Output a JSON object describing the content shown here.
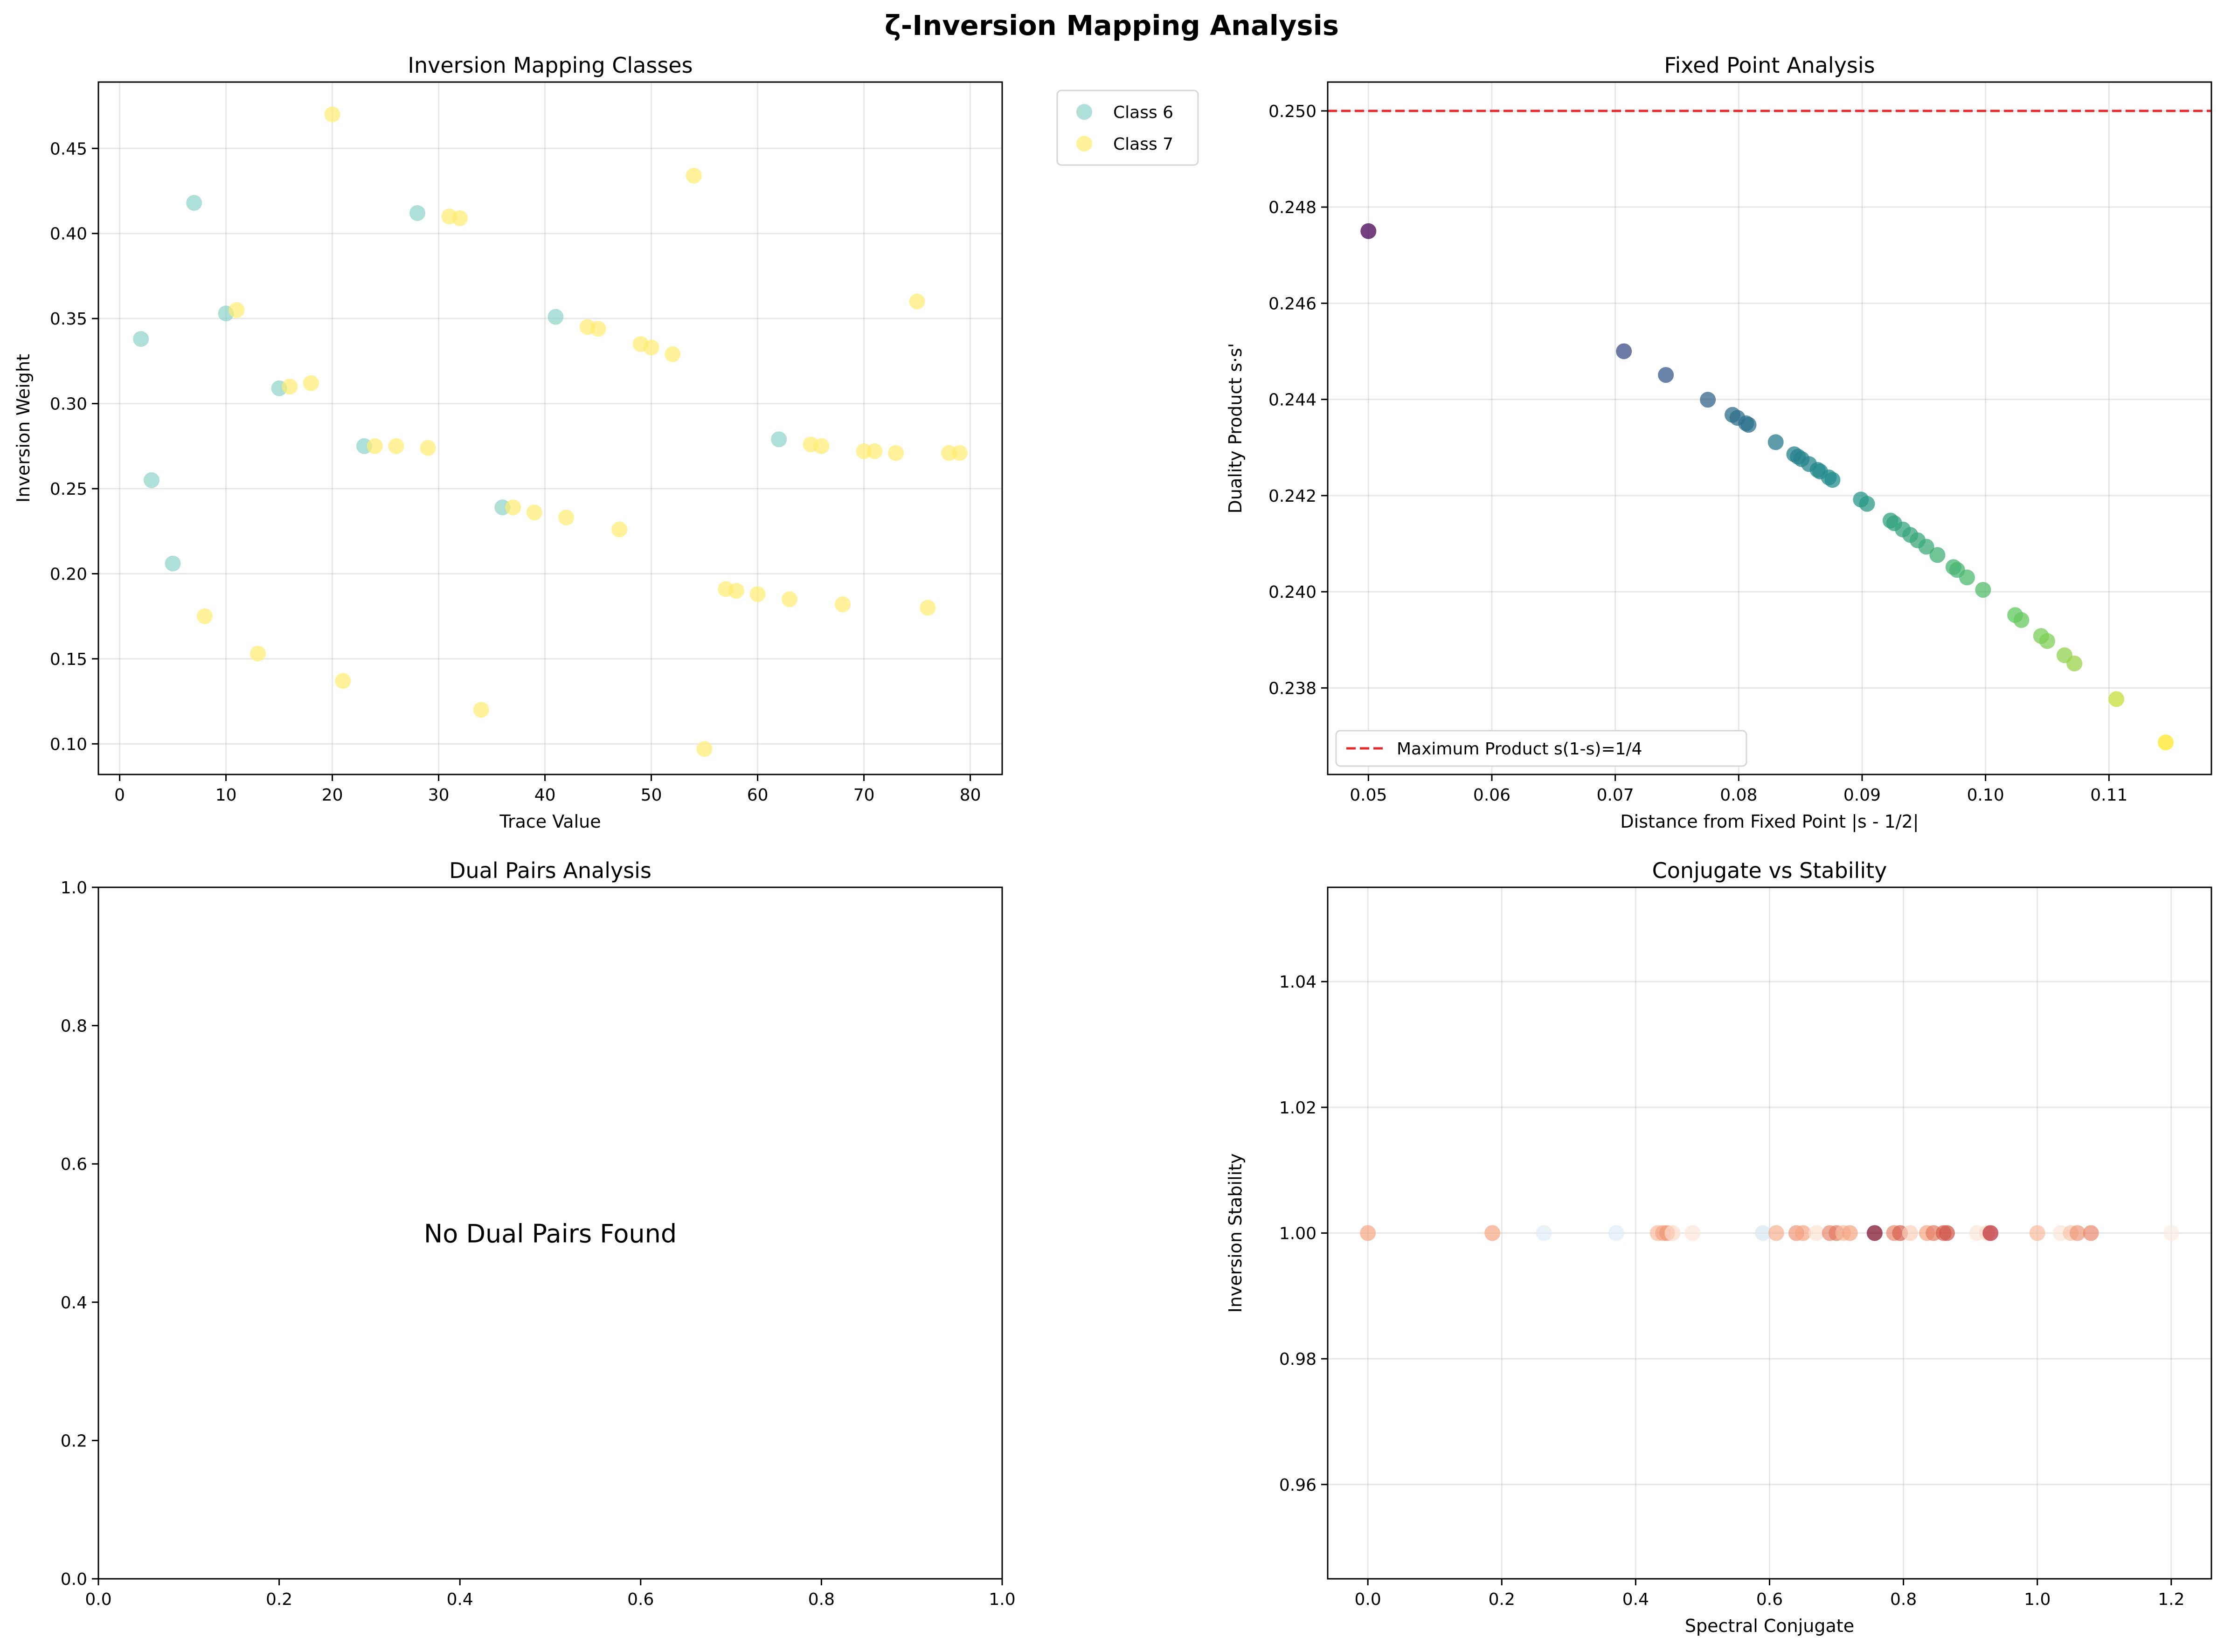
{
  "figure": {
    "title": "ζ-Inversion Mapping Analysis"
  },
  "chart_data": [
    {
      "type": "scatter",
      "title": "Inversion Mapping Classes",
      "xlabel": "Trace Value",
      "ylabel": "Inversion Weight",
      "xlim": [
        -2,
        83
      ],
      "ylim": [
        0.082,
        0.489
      ],
      "xticks": [
        0,
        10,
        20,
        30,
        40,
        50,
        60,
        70,
        80
      ],
      "yticks": [
        0.1,
        0.15,
        0.2,
        0.25,
        0.3,
        0.35,
        0.4,
        0.45
      ],
      "ytick_decimals": 2,
      "grid": true,
      "legend": "outside-upper-right",
      "series": [
        {
          "name": "Class 6",
          "color": "#8dd3c7",
          "points": [
            [
              2,
              0.338
            ],
            [
              3,
              0.255
            ],
            [
              5,
              0.206
            ],
            [
              7,
              0.418
            ],
            [
              10,
              0.353
            ],
            [
              15,
              0.309
            ],
            [
              23,
              0.275
            ],
            [
              28,
              0.412
            ],
            [
              36,
              0.239
            ],
            [
              41,
              0.351
            ],
            [
              62,
              0.279
            ]
          ]
        },
        {
          "name": "Class 7",
          "color": "#ffed6f",
          "points": [
            [
              8,
              0.175
            ],
            [
              11,
              0.355
            ],
            [
              13,
              0.153
            ],
            [
              16,
              0.31
            ],
            [
              18,
              0.312
            ],
            [
              20,
              0.47
            ],
            [
              21,
              0.137
            ],
            [
              24,
              0.275
            ],
            [
              26,
              0.275
            ],
            [
              29,
              0.274
            ],
            [
              31,
              0.41
            ],
            [
              32,
              0.409
            ],
            [
              34,
              0.12
            ],
            [
              37,
              0.239
            ],
            [
              39,
              0.236
            ],
            [
              42,
              0.233
            ],
            [
              44,
              0.345
            ],
            [
              45,
              0.344
            ],
            [
              47,
              0.226
            ],
            [
              49,
              0.335
            ],
            [
              50,
              0.333
            ],
            [
              52,
              0.329
            ],
            [
              54,
              0.434
            ],
            [
              55,
              0.097
            ],
            [
              57,
              0.191
            ],
            [
              58,
              0.19
            ],
            [
              60,
              0.188
            ],
            [
              63,
              0.185
            ],
            [
              65,
              0.276
            ],
            [
              66,
              0.275
            ],
            [
              68,
              0.182
            ],
            [
              70,
              0.272
            ],
            [
              71,
              0.272
            ],
            [
              73,
              0.271
            ],
            [
              75,
              0.36
            ],
            [
              76,
              0.18
            ],
            [
              78,
              0.271
            ],
            [
              79,
              0.271
            ]
          ]
        }
      ]
    },
    {
      "type": "scatter",
      "title": "Fixed Point Analysis",
      "xlabel": "Distance from Fixed Point |s - 1/2|",
      "ylabel": "Duality Product s·s'",
      "xlim": [
        0.0467,
        0.1183
      ],
      "ylim": [
        0.2362,
        0.2506
      ],
      "xticks": [
        0.05,
        0.06,
        0.07,
        0.08,
        0.09,
        0.1,
        0.11
      ],
      "yticks": [
        0.238,
        0.24,
        0.242,
        0.244,
        0.246,
        0.248,
        0.25
      ],
      "xtick_decimals": 2,
      "ytick_decimals": 3,
      "grid": true,
      "colormap": "viridis",
      "reference_line": {
        "y": 0.25,
        "label": "Maximum Product s(1-s)=1/4",
        "color": "#e8272a"
      },
      "legend": "lower-left",
      "points_x": [
        0.05,
        0.0707,
        0.0741,
        0.0775,
        0.0795,
        0.0799,
        0.0806,
        0.0808,
        0.083,
        0.0845,
        0.0848,
        0.0851,
        0.0857,
        0.0864,
        0.0866,
        0.0873,
        0.0876,
        0.0899,
        0.0904,
        0.0923,
        0.0926,
        0.0933,
        0.0939,
        0.0945,
        0.0952,
        0.0961,
        0.0974,
        0.0977,
        0.0985,
        0.0998,
        0.1024,
        0.1029,
        0.1045,
        0.105,
        0.1064,
        0.1072,
        0.1106,
        0.1146
      ]
    },
    {
      "type": "scatter",
      "title": "Dual Pairs Analysis",
      "xlim": [
        0,
        1
      ],
      "ylim": [
        0,
        1
      ],
      "xticks": [
        0.0,
        0.2,
        0.4,
        0.6,
        0.8,
        1.0
      ],
      "yticks": [
        0.0,
        0.2,
        0.4,
        0.6,
        0.8,
        1.0
      ],
      "xtick_decimals": 1,
      "ytick_decimals": 1,
      "grid": false,
      "message": "No Dual Pairs Found"
    },
    {
      "type": "scatter",
      "title": "Conjugate vs Stability",
      "xlabel": "Spectral Conjugate",
      "ylabel": "Inversion Stability",
      "xlim": [
        -0.06,
        1.26
      ],
      "ylim": [
        0.945,
        1.055
      ],
      "xticks": [
        0.0,
        0.2,
        0.4,
        0.6,
        0.8,
        1.0,
        1.2
      ],
      "yticks": [
        0.96,
        0.98,
        1.0,
        1.02,
        1.04
      ],
      "xtick_decimals": 1,
      "ytick_decimals": 2,
      "grid": true,
      "colormap": "RdBu",
      "points": [
        [
          0.0,
          1.0,
          0.3
        ],
        [
          0.186,
          1.0,
          0.3
        ],
        [
          0.263,
          1.0,
          0.56
        ],
        [
          0.371,
          1.0,
          0.56
        ],
        [
          0.433,
          1.0,
          0.34
        ],
        [
          0.441,
          1.0,
          0.3
        ],
        [
          0.447,
          1.0,
          0.28
        ],
        [
          0.455,
          1.0,
          0.4
        ],
        [
          0.485,
          1.0,
          0.44
        ],
        [
          0.59,
          1.0,
          0.58
        ],
        [
          0.61,
          1.0,
          0.32
        ],
        [
          0.64,
          1.0,
          0.28
        ],
        [
          0.65,
          1.0,
          0.3
        ],
        [
          0.67,
          1.0,
          0.42
        ],
        [
          0.69,
          1.0,
          0.26
        ],
        [
          0.7,
          1.0,
          0.24
        ],
        [
          0.71,
          1.0,
          0.34
        ],
        [
          0.72,
          1.0,
          0.3
        ],
        [
          0.757,
          1.0,
          0.02
        ],
        [
          0.786,
          1.0,
          0.26
        ],
        [
          0.795,
          1.0,
          0.2
        ],
        [
          0.81,
          1.0,
          0.38
        ],
        [
          0.835,
          1.0,
          0.3
        ],
        [
          0.845,
          1.0,
          0.24
        ],
        [
          0.86,
          1.0,
          0.2
        ],
        [
          0.865,
          1.0,
          0.18
        ],
        [
          0.91,
          1.0,
          0.44
        ],
        [
          0.925,
          1.0,
          0.4
        ],
        [
          0.93,
          1.0,
          0.12
        ],
        [
          1.0,
          1.0,
          0.34
        ],
        [
          1.035,
          1.0,
          0.44
        ],
        [
          1.05,
          1.0,
          0.36
        ],
        [
          1.06,
          1.0,
          0.28
        ],
        [
          1.08,
          1.0,
          0.26
        ],
        [
          1.2,
          1.0,
          0.46
        ]
      ]
    }
  ]
}
